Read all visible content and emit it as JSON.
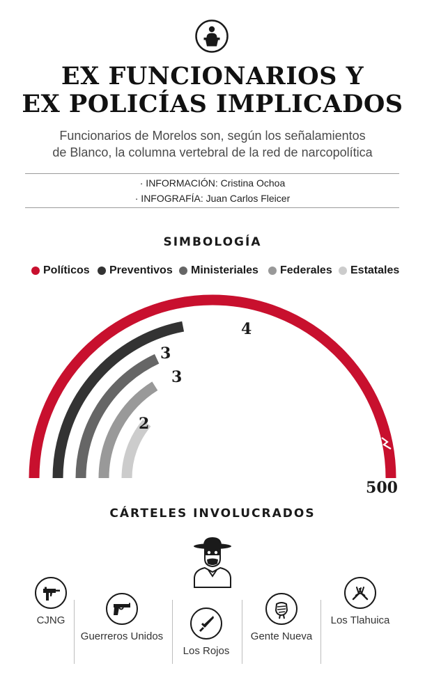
{
  "header": {
    "icon": "podium-speaker-icon",
    "title_line1": "EX FUNCIONARIOS Y",
    "title_line2": "EX POLICÍAS IMPLICADOS",
    "subtitle_line1": "Funcionarios de Morelos son, según los señalamientos",
    "subtitle_line2": "de Blanco, la columna vertebral de la red de narcopolítica"
  },
  "credits": {
    "info": "· INFORMACIÓN: Cristina Ochoa",
    "graphic": "· INFOGRAFÍA: Juan Carlos Fleicer"
  },
  "legend": {
    "title": "SIMBOLOGÍA",
    "items": [
      {
        "label": "Políticos",
        "color": "#c8102e"
      },
      {
        "label": "Preventivos",
        "color": "#333333"
      },
      {
        "label": "Ministeriales",
        "color": "#666666"
      },
      {
        "label": "Federales",
        "color": "#999999"
      },
      {
        "label": "Estatales",
        "color": "#cccccc"
      }
    ]
  },
  "chart_data": {
    "type": "radial-bar",
    "scale_max_label": "500",
    "series": [
      {
        "name": "Políticos",
        "value": 500,
        "label": "500",
        "color": "#c8102e",
        "axis_break": true
      },
      {
        "name": "Preventivos",
        "value": 4,
        "label": "4",
        "color": "#333333"
      },
      {
        "name": "Ministeriales",
        "value": 3,
        "label": "3",
        "color": "#666666"
      },
      {
        "name": "Federales",
        "value": 3,
        "label": "3",
        "color": "#999999"
      },
      {
        "name": "Estatales",
        "value": 2,
        "label": "2",
        "color": "#cccccc"
      }
    ]
  },
  "cartels": {
    "title": "CÁRTELES INVOLUCRADOS",
    "figure_icon": "masked-bandit-icon",
    "items": [
      {
        "name": "CJNG",
        "icon": "submachine-gun-icon"
      },
      {
        "name": "Guerreros Unidos",
        "icon": "pistol-icon"
      },
      {
        "name": "Los Rojos",
        "icon": "knife-icon"
      },
      {
        "name": "Gente Nueva",
        "icon": "fist-icon"
      },
      {
        "name": "Los Tlahuica",
        "icon": "hand-sign-icon"
      }
    ]
  }
}
